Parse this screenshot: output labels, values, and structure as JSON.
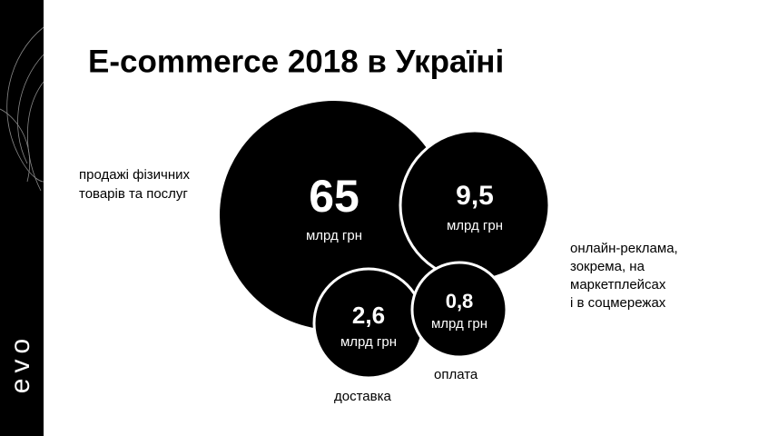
{
  "logo": "evo",
  "title": "E-commerce 2018 в Україні",
  "bubbles": [
    {
      "value": "65",
      "unit": "млрд грн",
      "caption": [
        "продажі фізичних",
        "товарів та послуг"
      ]
    },
    {
      "value": "9,5",
      "unit": "млрд грн",
      "caption": [
        "онлайн-реклама,",
        "зокрема, на",
        "маркетплейсах",
        "і в соцмережах"
      ]
    },
    {
      "value": "2,6",
      "unit": "млрд грн",
      "caption": [
        "доставка"
      ]
    },
    {
      "value": "0,8",
      "unit": "млрд грн",
      "caption": [
        "оплата"
      ]
    }
  ]
}
